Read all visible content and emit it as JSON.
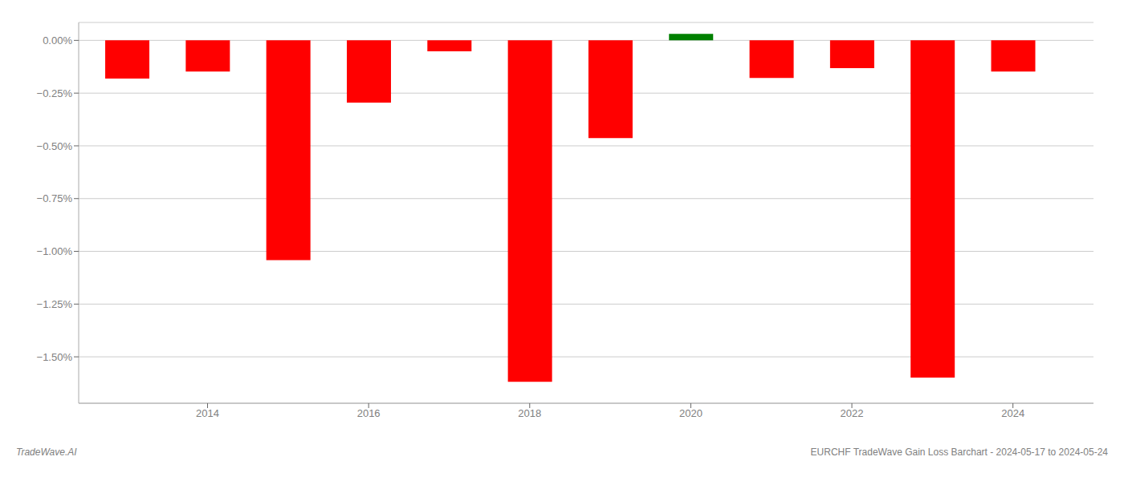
{
  "chart_data": {
    "type": "bar",
    "x": [
      2013,
      2014,
      2015,
      2016,
      2017,
      2018,
      2019,
      2020,
      2021,
      2022,
      2023,
      2024
    ],
    "values": [
      -0.181,
      -0.148,
      -1.042,
      -0.295,
      -0.052,
      -1.618,
      -0.463,
      0.031,
      -0.178,
      -0.132,
      -1.598,
      -0.148
    ],
    "colors": [
      "#ff0000",
      "#ff0000",
      "#ff0000",
      "#ff0000",
      "#ff0000",
      "#ff0000",
      "#ff0000",
      "#008000",
      "#ff0000",
      "#ff0000",
      "#ff0000",
      "#ff0000"
    ],
    "xlim": [
      2012.4,
      2025.0
    ],
    "xticks": [
      2014,
      2016,
      2018,
      2020,
      2022,
      2024
    ],
    "ylim": [
      -1.72,
      0.085
    ],
    "yticks": [
      {
        "value": 0.0,
        "label": "0.00%"
      },
      {
        "value": -0.25,
        "label": "−0.25%"
      },
      {
        "value": -0.5,
        "label": "−0.50%"
      },
      {
        "value": -0.75,
        "label": "−0.75%"
      },
      {
        "value": -1.0,
        "label": "−1.00%"
      },
      {
        "value": -1.25,
        "label": "−1.25%"
      },
      {
        "value": -1.5,
        "label": "−1.50%"
      }
    ],
    "grid": true,
    "annotations": [
      "TradeWave.AI",
      "EURCHF TradeWave Gain Loss Barchart - 2024-05-17 to 2024-05-24"
    ]
  }
}
